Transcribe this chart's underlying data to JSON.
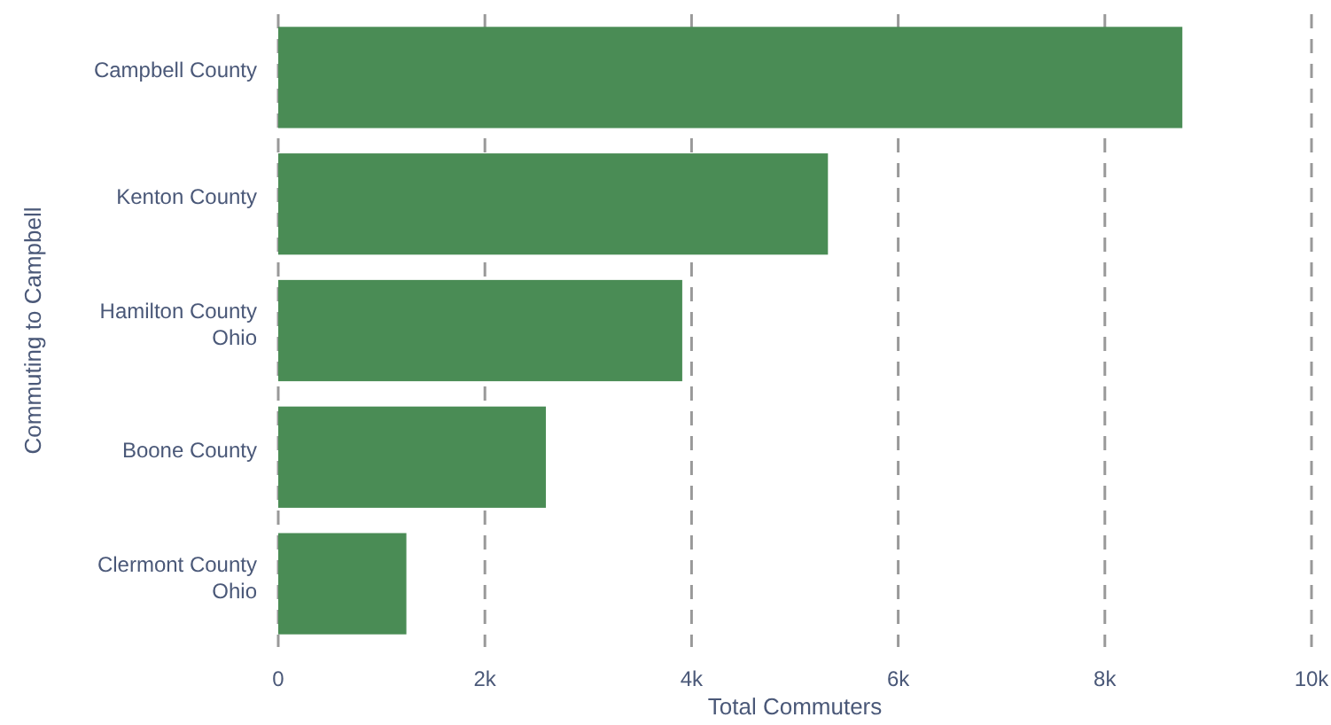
{
  "chart_data": {
    "type": "bar",
    "orientation": "horizontal",
    "xlabel": "Total Commuters",
    "ylabel": "Commuting to Campbell",
    "categories": [
      "Campbell County",
      "Kenton County",
      "Hamilton County\nOhio",
      "Boone County",
      "Clermont County\nOhio"
    ],
    "values": [
      8750,
      5320,
      3910,
      2590,
      1240
    ],
    "color": "#4a8c55",
    "xlim": [
      0,
      10000
    ],
    "xticks": [
      {
        "value": 0,
        "label": "0"
      },
      {
        "value": 2000,
        "label": "2k"
      },
      {
        "value": 4000,
        "label": "4k"
      },
      {
        "value": 6000,
        "label": "6k"
      },
      {
        "value": 8000,
        "label": "8k"
      },
      {
        "value": 10000,
        "label": "10k"
      }
    ],
    "grid": "x"
  }
}
